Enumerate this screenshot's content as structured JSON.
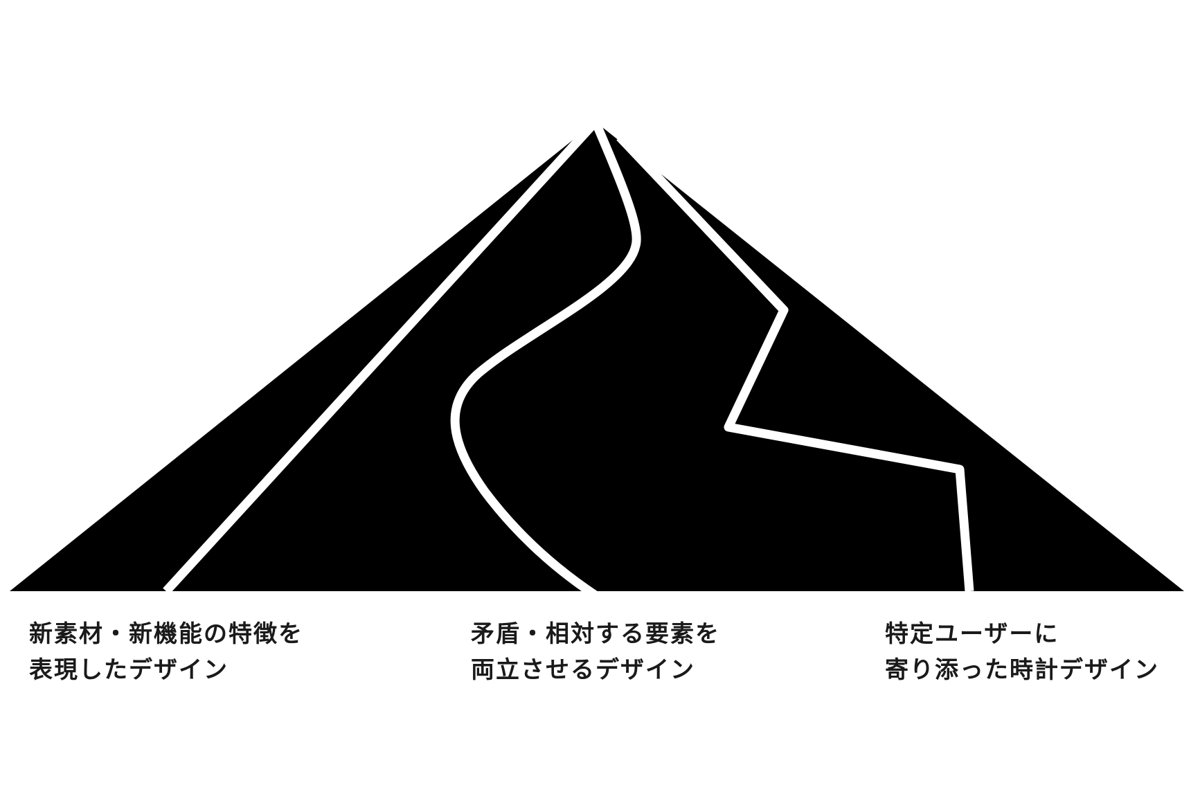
{
  "colors": {
    "mountain_fill": "#000000",
    "path_stroke": "#ffffff",
    "background": "#ffffff",
    "text": "#1a1a1a"
  },
  "captions": [
    {
      "line1": "新素材・新機能の特徴を",
      "line2": "表現したデザイン"
    },
    {
      "line1": "矛盾・相対する要素を",
      "line2": "両立させるデザイン"
    },
    {
      "line1": "特定ユーザーに",
      "line2": "寄り添った時計デザイン"
    }
  ]
}
